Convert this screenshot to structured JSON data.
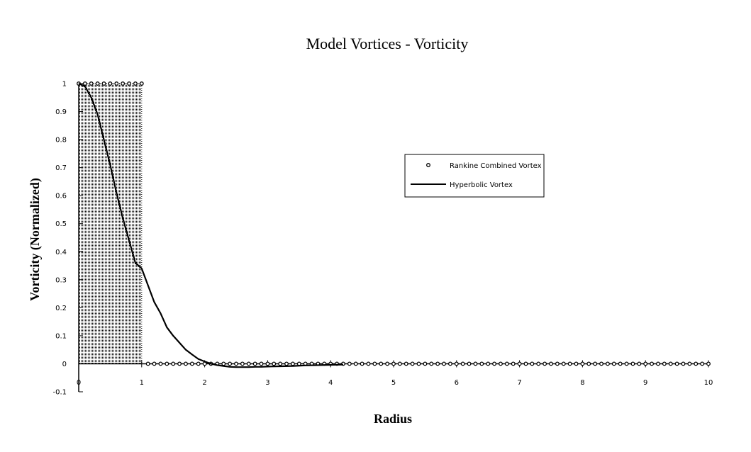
{
  "chart_data": {
    "type": "line",
    "title": "Model Vortices - Vorticity",
    "xlabel": "Radius",
    "ylabel": "Vorticity (Normalized)",
    "xlim": [
      0,
      10
    ],
    "ylim": [
      -0.1,
      1
    ],
    "x_ticks": [
      "0",
      "1",
      "2",
      "3",
      "4",
      "5",
      "6",
      "7",
      "8",
      "9",
      "10"
    ],
    "y_ticks": [
      "-0.1",
      "0",
      "0.1",
      "0.2",
      "0.3",
      "0.4",
      "0.5",
      "0.6",
      "0.7",
      "0.8",
      "0.9",
      "1"
    ],
    "shaded_region": [
      0,
      1
    ],
    "grid": false,
    "legend_position": "right",
    "series": [
      {
        "name": "Rankine Combined Vortex",
        "style": "circle-markers",
        "x": [
          0,
          0.1,
          0.2,
          0.3,
          0.4,
          0.5,
          0.6,
          0.7,
          0.8,
          0.9,
          1.0,
          1.1,
          1.2,
          1.3,
          1.4,
          1.5,
          1.6,
          1.7,
          1.8,
          1.9,
          2.0,
          2.1,
          2.2,
          2.3,
          2.4,
          2.5,
          2.6,
          2.7,
          2.8,
          2.9,
          3.0,
          3.1,
          3.2,
          3.3,
          3.4,
          3.5,
          3.6,
          3.7,
          3.8,
          3.9,
          4.0,
          4.1,
          4.2,
          4.3,
          4.4,
          4.5,
          4.6,
          4.7,
          4.8,
          4.9,
          5.0,
          5.1,
          5.2,
          5.3,
          5.4,
          5.5,
          5.6,
          5.7,
          5.8,
          5.9,
          6.0,
          6.1,
          6.2,
          6.3,
          6.4,
          6.5,
          6.6,
          6.7,
          6.8,
          6.9,
          7.0,
          7.1,
          7.2,
          7.3,
          7.4,
          7.5,
          7.6,
          7.7,
          7.8,
          7.9,
          8.0,
          8.1,
          8.2,
          8.3,
          8.4,
          8.5,
          8.6,
          8.7,
          8.8,
          8.9,
          9.0,
          9.1,
          9.2,
          9.3,
          9.4,
          9.5,
          9.6,
          9.7,
          9.8,
          9.9,
          10.0
        ],
        "y": [
          1,
          1,
          1,
          1,
          1,
          1,
          1,
          1,
          1,
          1,
          1,
          0,
          0,
          0,
          0,
          0,
          0,
          0,
          0,
          0,
          0,
          0,
          0,
          0,
          0,
          0,
          0,
          0,
          0,
          0,
          0,
          0,
          0,
          0,
          0,
          0,
          0,
          0,
          0,
          0,
          0,
          0,
          0,
          0,
          0,
          0,
          0,
          0,
          0,
          0,
          0,
          0,
          0,
          0,
          0,
          0,
          0,
          0,
          0,
          0,
          0,
          0,
          0,
          0,
          0,
          0,
          0,
          0,
          0,
          0,
          0,
          0,
          0,
          0,
          0,
          0,
          0,
          0,
          0,
          0,
          0,
          0,
          0,
          0,
          0,
          0,
          0,
          0,
          0,
          0,
          0,
          0,
          0,
          0,
          0,
          0,
          0,
          0,
          0,
          0,
          0
        ]
      },
      {
        "name": "Hyperbolic Vortex",
        "style": "solid-line",
        "x": [
          0,
          0.1,
          0.2,
          0.3,
          0.4,
          0.5,
          0.6,
          0.7,
          0.8,
          0.9,
          1.0,
          1.1,
          1.2,
          1.3,
          1.4,
          1.5,
          1.6,
          1.7,
          1.8,
          1.9,
          2.0,
          2.1,
          2.2,
          2.3,
          2.4,
          2.5,
          2.6,
          2.7,
          2.8,
          2.9,
          3.0,
          3.2,
          3.4,
          3.6,
          3.8,
          4.0,
          4.2
        ],
        "y": [
          1.0,
          0.99,
          0.95,
          0.89,
          0.8,
          0.71,
          0.61,
          0.52,
          0.44,
          0.36,
          0.34,
          0.28,
          0.22,
          0.18,
          0.13,
          0.1,
          0.075,
          0.05,
          0.033,
          0.017,
          0.008,
          0.0,
          -0.005,
          -0.008,
          -0.011,
          -0.012,
          -0.012,
          -0.012,
          -0.011,
          -0.011,
          -0.01,
          -0.009,
          -0.008,
          -0.006,
          -0.005,
          -0.004,
          -0.003
        ]
      }
    ]
  }
}
